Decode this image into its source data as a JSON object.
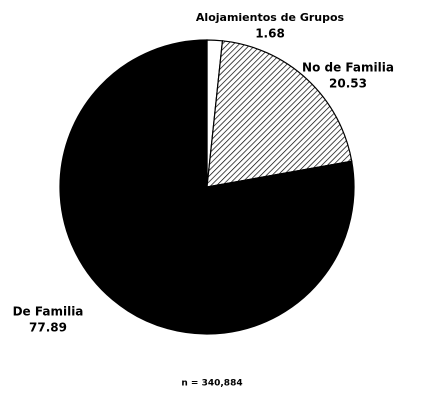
{
  "chart_data": {
    "type": "pie",
    "categories": [
      "Alojamientos de Grupos",
      "No de Familia",
      "De Familia"
    ],
    "values": [
      1.68,
      20.53,
      77.89
    ],
    "colors": [
      "#ffffff",
      "hatched",
      "#000000"
    ],
    "note": "n = 340,884"
  }
}
